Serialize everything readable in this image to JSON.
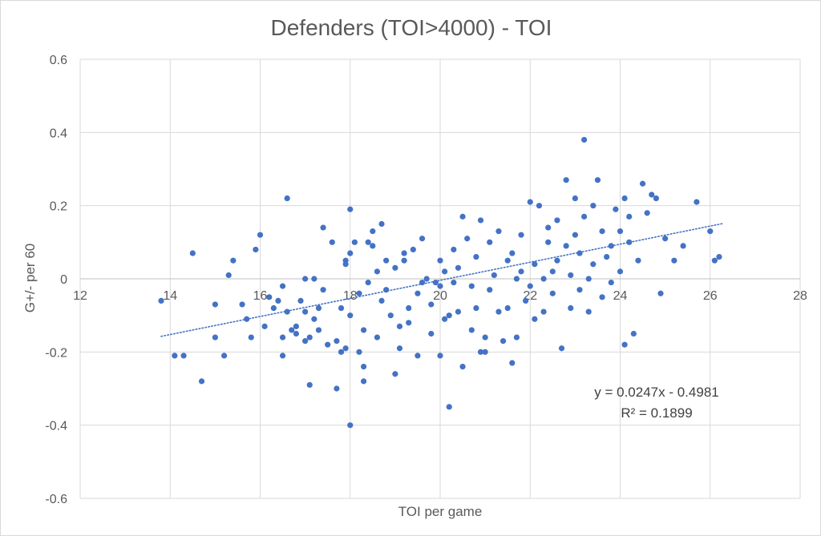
{
  "chart_data": {
    "type": "scatter",
    "title": "Defenders (TOI>4000) - TOI",
    "xlabel": "TOI per game",
    "ylabel": "G+/- per 60",
    "xlim": [
      12,
      28
    ],
    "ylim": [
      -0.6,
      0.6
    ],
    "x_ticks": [
      12,
      14,
      16,
      18,
      20,
      22,
      24,
      26,
      28
    ],
    "y_ticks": [
      -0.6,
      -0.4,
      -0.2,
      0,
      0.2,
      0.4,
      0.6
    ],
    "x_tick_labels": [
      "12",
      "14",
      "16",
      "18",
      "20",
      "22",
      "24",
      "26",
      "28"
    ],
    "y_tick_labels": [
      "-0.6",
      "-0.4",
      "-0.2",
      "0",
      "0.2",
      "0.4",
      "0.6"
    ],
    "grid": true,
    "marker_color": "#4472c4",
    "trendline": {
      "type": "linear",
      "slope": 0.0247,
      "intercept": -0.4981,
      "x_range": [
        13.8,
        26.3
      ],
      "style": "dotted",
      "color": "#4472c4",
      "equation": "y = 0.0247x - 0.4981",
      "r_squared": "R² = 0.1899"
    },
    "points": [
      [
        13.8,
        -0.06
      ],
      [
        14.1,
        -0.21
      ],
      [
        14.3,
        -0.21
      ],
      [
        14.5,
        0.07
      ],
      [
        14.7,
        -0.28
      ],
      [
        15.0,
        -0.07
      ],
      [
        15.0,
        -0.16
      ],
      [
        15.2,
        -0.21
      ],
      [
        15.3,
        0.01
      ],
      [
        15.4,
        0.05
      ],
      [
        15.6,
        -0.07
      ],
      [
        15.7,
        -0.11
      ],
      [
        15.8,
        -0.16
      ],
      [
        15.9,
        0.08
      ],
      [
        16.0,
        0.12
      ],
      [
        16.1,
        -0.13
      ],
      [
        16.2,
        -0.05
      ],
      [
        16.3,
        -0.08
      ],
      [
        16.4,
        -0.06
      ],
      [
        16.5,
        -0.16
      ],
      [
        16.5,
        -0.02
      ],
      [
        16.5,
        -0.21
      ],
      [
        16.6,
        0.22
      ],
      [
        16.6,
        -0.09
      ],
      [
        16.7,
        -0.14
      ],
      [
        16.8,
        -0.15
      ],
      [
        16.8,
        -0.13
      ],
      [
        16.9,
        -0.06
      ],
      [
        17.0,
        -0.17
      ],
      [
        17.0,
        0.0
      ],
      [
        17.0,
        -0.09
      ],
      [
        17.1,
        -0.29
      ],
      [
        17.1,
        -0.16
      ],
      [
        17.2,
        -0.11
      ],
      [
        17.2,
        0.0
      ],
      [
        17.3,
        -0.14
      ],
      [
        17.3,
        -0.08
      ],
      [
        17.4,
        0.14
      ],
      [
        17.4,
        -0.03
      ],
      [
        17.5,
        -0.18
      ],
      [
        17.6,
        0.1
      ],
      [
        17.7,
        -0.3
      ],
      [
        17.7,
        -0.17
      ],
      [
        17.8,
        -0.08
      ],
      [
        17.8,
        -0.2
      ],
      [
        17.9,
        0.05
      ],
      [
        17.9,
        0.04
      ],
      [
        17.9,
        -0.19
      ],
      [
        18.0,
        0.19
      ],
      [
        18.0,
        -0.1
      ],
      [
        18.0,
        -0.4
      ],
      [
        18.0,
        0.07
      ],
      [
        18.1,
        0.1
      ],
      [
        18.2,
        -0.04
      ],
      [
        18.2,
        -0.2
      ],
      [
        18.3,
        -0.14
      ],
      [
        18.3,
        -0.24
      ],
      [
        18.3,
        -0.28
      ],
      [
        18.4,
        0.1
      ],
      [
        18.4,
        -0.01
      ],
      [
        18.5,
        0.13
      ],
      [
        18.5,
        0.09
      ],
      [
        18.6,
        0.02
      ],
      [
        18.6,
        -0.16
      ],
      [
        18.7,
        0.15
      ],
      [
        18.7,
        -0.06
      ],
      [
        18.8,
        -0.03
      ],
      [
        18.8,
        0.05
      ],
      [
        18.9,
        -0.1
      ],
      [
        19.0,
        -0.26
      ],
      [
        19.0,
        0.03
      ],
      [
        19.1,
        -0.13
      ],
      [
        19.1,
        -0.19
      ],
      [
        19.2,
        0.07
      ],
      [
        19.2,
        0.05
      ],
      [
        19.3,
        -0.12
      ],
      [
        19.3,
        -0.08
      ],
      [
        19.4,
        0.08
      ],
      [
        19.5,
        -0.21
      ],
      [
        19.5,
        -0.04
      ],
      [
        19.6,
        0.11
      ],
      [
        19.6,
        -0.01
      ],
      [
        19.7,
        0.0
      ],
      [
        19.8,
        -0.07
      ],
      [
        19.8,
        -0.15
      ],
      [
        19.9,
        -0.01
      ],
      [
        20.0,
        0.05
      ],
      [
        20.0,
        -0.21
      ],
      [
        20.0,
        -0.02
      ],
      [
        20.1,
        -0.11
      ],
      [
        20.1,
        0.02
      ],
      [
        20.2,
        -0.1
      ],
      [
        20.2,
        -0.35
      ],
      [
        20.3,
        0.08
      ],
      [
        20.3,
        -0.01
      ],
      [
        20.4,
        0.03
      ],
      [
        20.4,
        -0.09
      ],
      [
        20.5,
        0.17
      ],
      [
        20.5,
        -0.24
      ],
      [
        20.6,
        0.11
      ],
      [
        20.7,
        -0.02
      ],
      [
        20.7,
        -0.14
      ],
      [
        20.8,
        0.06
      ],
      [
        20.8,
        -0.08
      ],
      [
        20.9,
        0.16
      ],
      [
        20.9,
        -0.2
      ],
      [
        21.0,
        -0.16
      ],
      [
        21.0,
        -0.2
      ],
      [
        21.1,
        0.1
      ],
      [
        21.1,
        -0.03
      ],
      [
        21.2,
        0.01
      ],
      [
        21.3,
        -0.09
      ],
      [
        21.3,
        0.13
      ],
      [
        21.4,
        -0.17
      ],
      [
        21.5,
        0.05
      ],
      [
        21.5,
        -0.08
      ],
      [
        21.6,
        0.07
      ],
      [
        21.6,
        -0.23
      ],
      [
        21.7,
        0.0
      ],
      [
        21.7,
        -0.16
      ],
      [
        21.8,
        0.12
      ],
      [
        21.8,
        0.02
      ],
      [
        21.9,
        -0.06
      ],
      [
        22.0,
        0.21
      ],
      [
        22.0,
        -0.02
      ],
      [
        22.1,
        0.04
      ],
      [
        22.1,
        -0.11
      ],
      [
        22.2,
        0.2
      ],
      [
        22.3,
        0.0
      ],
      [
        22.3,
        -0.09
      ],
      [
        22.4,
        0.1
      ],
      [
        22.4,
        0.14
      ],
      [
        22.5,
        0.02
      ],
      [
        22.5,
        -0.04
      ],
      [
        22.6,
        0.16
      ],
      [
        22.6,
        0.05
      ],
      [
        22.7,
        -0.19
      ],
      [
        22.8,
        0.09
      ],
      [
        22.8,
        0.27
      ],
      [
        22.9,
        0.01
      ],
      [
        22.9,
        -0.08
      ],
      [
        23.0,
        0.12
      ],
      [
        23.0,
        0.22
      ],
      [
        23.1,
        0.07
      ],
      [
        23.1,
        -0.03
      ],
      [
        23.2,
        0.38
      ],
      [
        23.2,
        0.17
      ],
      [
        23.3,
        0.0
      ],
      [
        23.3,
        -0.09
      ],
      [
        23.4,
        0.2
      ],
      [
        23.4,
        0.04
      ],
      [
        23.5,
        0.27
      ],
      [
        23.6,
        0.13
      ],
      [
        23.6,
        -0.05
      ],
      [
        23.7,
        0.06
      ],
      [
        23.8,
        -0.01
      ],
      [
        23.8,
        0.09
      ],
      [
        23.9,
        0.19
      ],
      [
        24.0,
        0.13
      ],
      [
        24.0,
        0.02
      ],
      [
        24.1,
        0.22
      ],
      [
        24.1,
        -0.18
      ],
      [
        24.2,
        0.17
      ],
      [
        24.2,
        0.1
      ],
      [
        24.3,
        -0.15
      ],
      [
        24.4,
        0.05
      ],
      [
        24.5,
        0.26
      ],
      [
        24.6,
        0.18
      ],
      [
        24.7,
        0.23
      ],
      [
        24.8,
        0.22
      ],
      [
        24.9,
        -0.04
      ],
      [
        25.0,
        0.11
      ],
      [
        25.2,
        0.05
      ],
      [
        25.4,
        0.09
      ],
      [
        25.7,
        0.21
      ],
      [
        26.0,
        0.13
      ],
      [
        26.1,
        0.05
      ],
      [
        26.2,
        0.06
      ]
    ]
  }
}
